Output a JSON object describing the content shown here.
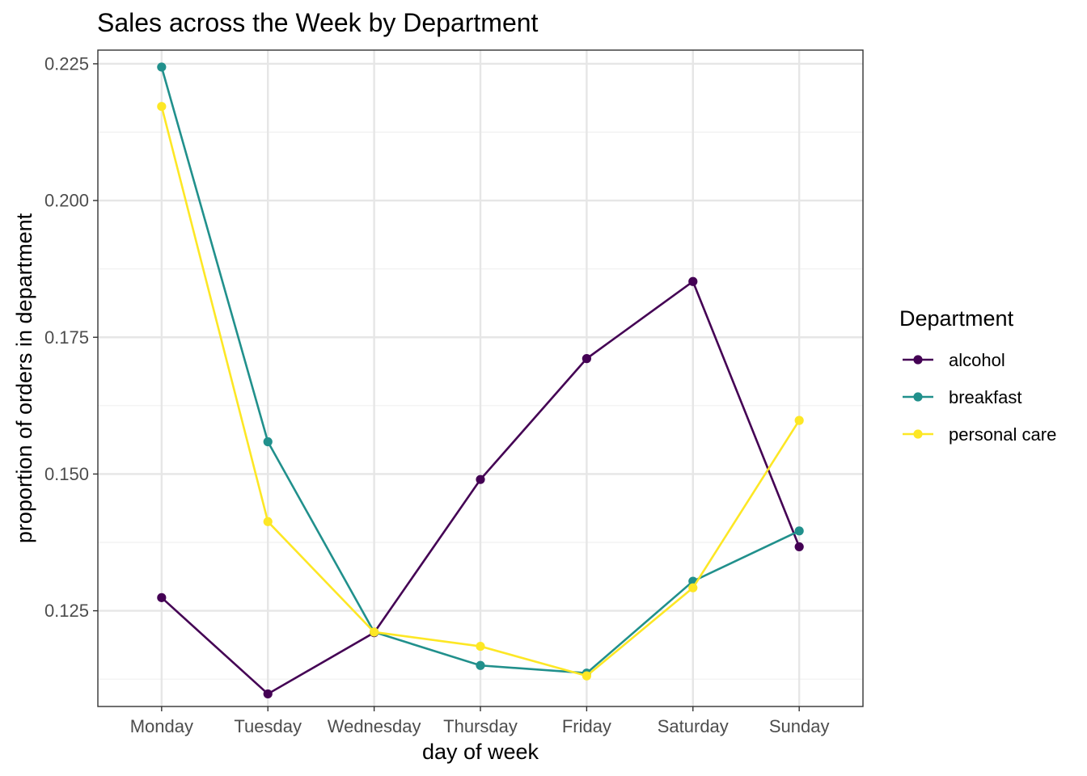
{
  "chart_data": {
    "type": "line",
    "title": "Sales across the Week by Department",
    "xlabel": "day of week",
    "ylabel": "proportion of orders in department",
    "categories": [
      "Monday",
      "Tuesday",
      "Wednesday",
      "Thursday",
      "Friday",
      "Saturday",
      "Sunday"
    ],
    "ylim": [
      0.1075,
      0.2275
    ],
    "yticks": [
      0.125,
      0.15,
      0.175,
      0.2,
      0.225
    ],
    "ytick_labels": [
      "0.125",
      "0.150",
      "0.175",
      "0.200",
      "0.225"
    ],
    "grid": true,
    "markers": true,
    "legend": {
      "title": "Department",
      "position": "right"
    },
    "series": [
      {
        "name": "alcohol",
        "color": "#440154",
        "values": [
          0.1274,
          0.1098,
          0.121,
          0.149,
          0.1711,
          0.1852,
          0.1367
        ]
      },
      {
        "name": "breakfast",
        "color": "#21908C",
        "values": [
          0.2244,
          0.1559,
          0.1211,
          0.115,
          0.1136,
          0.1304,
          0.1396
        ]
      },
      {
        "name": "personal care",
        "color": "#FDE725",
        "values": [
          0.2172,
          0.1413,
          0.1211,
          0.1185,
          0.1131,
          0.1292,
          0.1598
        ]
      }
    ]
  }
}
